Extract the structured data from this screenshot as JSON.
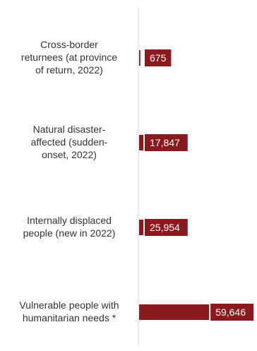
{
  "chart_data": {
    "type": "bar",
    "orientation": "horizontal",
    "bar_color": "#8B1A1F",
    "axis_color": "#D9D9D9",
    "label_color": "#333333",
    "value_label_color": "#FFFFFF",
    "categories": [
      [
        "Cross-border",
        "returnees (at province",
        "of return, 2022)"
      ],
      [
        "Natural disaster-",
        "affected (sudden-",
        "onset, 2022)"
      ],
      [
        "Internally displaced",
        "people (new in 2022)"
      ],
      [
        "Vulnerable people with",
        "humanitarian needs *"
      ]
    ],
    "values": [
      675,
      17847,
      25954,
      59646
    ],
    "value_labels": [
      "675",
      "17,847",
      "25,954",
      "59,646"
    ],
    "xlim": [
      0,
      60000
    ],
    "grid": false,
    "legend": "none"
  }
}
